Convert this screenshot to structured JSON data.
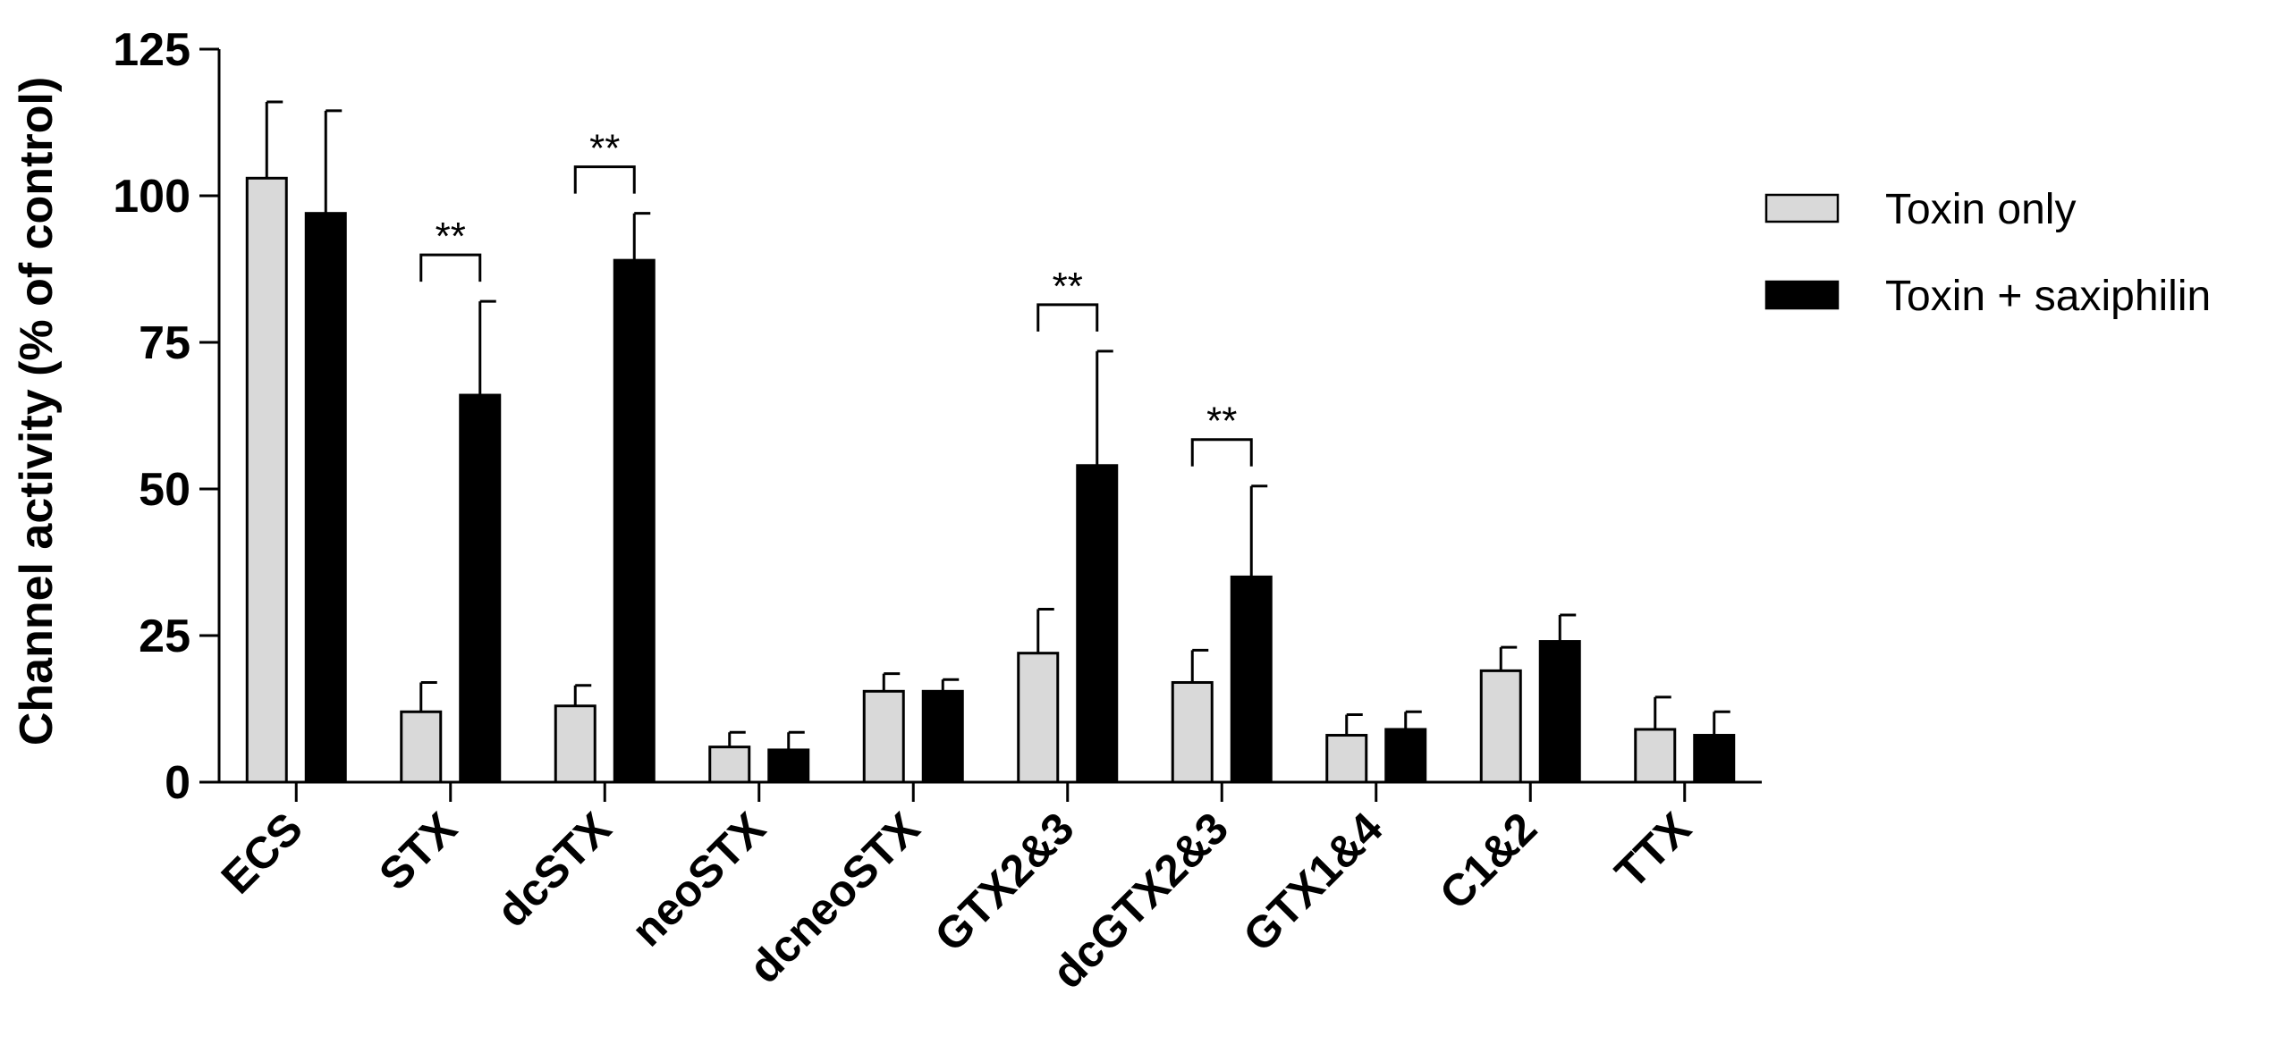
{
  "chart_data": {
    "type": "bar",
    "title": "",
    "xlabel": "",
    "ylabel": "Channel activity (% of control)",
    "ylim": [
      0,
      125
    ],
    "yticks": [
      0,
      25,
      50,
      75,
      100,
      125
    ],
    "yticklabels": [
      "0",
      "25",
      "50",
      "75",
      "100",
      "125"
    ],
    "grid": false,
    "legend_position": "top-right",
    "categories": [
      "ECS",
      "STX",
      "dcSTX",
      "neoSTX",
      "dcneoSTX",
      "GTX2&3",
      "dcGTX2&3",
      "GTX1&4",
      "C1&2",
      "TTX"
    ],
    "series": [
      {
        "name": "Toxin only",
        "color": "#d9d9d9",
        "values": [
          103,
          12,
          13,
          6,
          15.5,
          22,
          17,
          8,
          19,
          9
        ],
        "errors": [
          13,
          5,
          3.5,
          2.5,
          3,
          7.5,
          5.5,
          3.5,
          4,
          5.5
        ]
      },
      {
        "name": "Toxin + saxiphilin",
        "color": "#000000",
        "values": [
          97,
          66,
          89,
          5.5,
          15.5,
          54,
          35,
          9,
          24,
          8
        ],
        "errors": [
          17.5,
          16,
          8,
          3,
          2,
          19.5,
          15.5,
          3,
          4.5,
          4
        ]
      }
    ],
    "annotations": [
      {
        "category": "STX",
        "text": "**"
      },
      {
        "category": "dcSTX",
        "text": "**"
      },
      {
        "category": "GTX2&3",
        "text": "**"
      },
      {
        "category": "dcGTX2&3",
        "text": "**"
      }
    ]
  }
}
